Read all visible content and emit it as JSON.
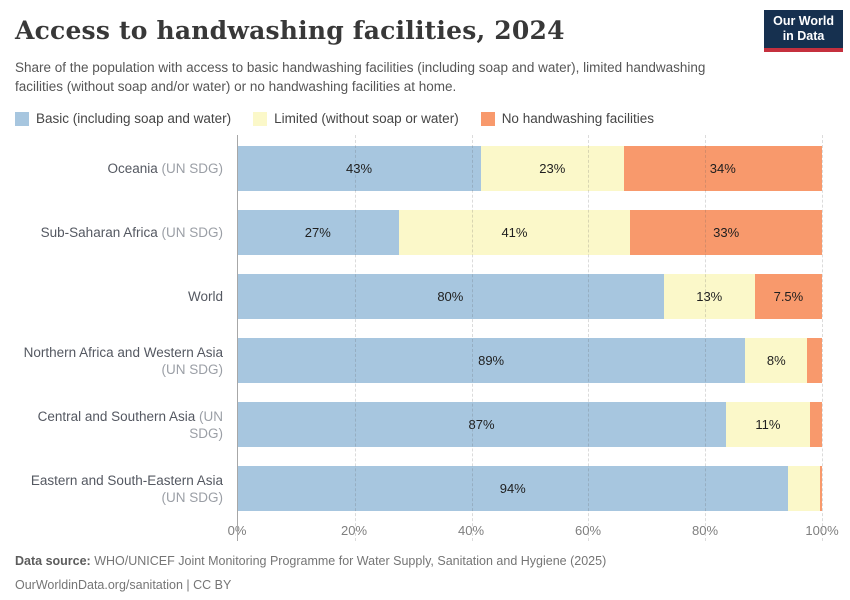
{
  "header": {
    "title": "Access to handwashing facilities, 2024",
    "subtitle": "Share of the population with access to basic handwashing facilities (including soap and water), limited handwashing facilities (without soap and/or water) or no handwashing facilities at home.",
    "logo": {
      "line1": "Our World",
      "line2": "in Data",
      "bg_color": "#16304f",
      "accent_color": "#c5303e"
    }
  },
  "chart_data": {
    "type": "bar",
    "stacked": true,
    "orientation": "horizontal",
    "unit": "%",
    "x_axis": {
      "range": [
        0,
        100
      ],
      "ticks": [
        0,
        20,
        40,
        60,
        80,
        100
      ],
      "tick_labels": [
        "0%",
        "20%",
        "40%",
        "60%",
        "80%",
        "100%"
      ],
      "gridlines": "dashed"
    },
    "legend_position": "top",
    "series": [
      {
        "name": "Basic (including soap and water)",
        "color": "#a7c6df"
      },
      {
        "name": "Limited (without soap or water)",
        "color": "#fbf8c9"
      },
      {
        "name": "No handwashing facilities",
        "color": "#f8996c"
      }
    ],
    "rows": [
      {
        "name": "Oceania",
        "qualifier": "(UN SDG)",
        "wrap": false,
        "values": [
          43,
          23,
          34
        ],
        "value_labels": [
          "43%",
          "23%",
          "34%"
        ]
      },
      {
        "name": "Sub-Saharan Africa",
        "qualifier": "(UN SDG)",
        "wrap": false,
        "values": [
          27,
          41,
          33
        ],
        "value_labels": [
          "27%",
          "41%",
          "33%"
        ]
      },
      {
        "name": "World",
        "qualifier": "",
        "wrap": false,
        "values": [
          80,
          13,
          7.5
        ],
        "value_labels": [
          "80%",
          "13%",
          "7.5%"
        ]
      },
      {
        "name": "Northern Africa and Western Asia",
        "qualifier": "(UN SDG)",
        "wrap": true,
        "values": [
          89,
          8,
          2.7
        ],
        "value_labels": [
          "89%",
          "8%",
          ""
        ]
      },
      {
        "name": "Central and Southern Asia",
        "qualifier": "(UN SDG)",
        "wrap": false,
        "values": [
          87,
          11,
          2.3
        ],
        "value_labels": [
          "87%",
          "11%",
          ""
        ]
      },
      {
        "name": "Eastern and South-Eastern Asia",
        "qualifier": "(UN SDG)",
        "wrap": true,
        "values": [
          94,
          5.6,
          0.4
        ],
        "value_labels": [
          "94%",
          "",
          ""
        ]
      }
    ]
  },
  "footer": {
    "source_label": "Data source:",
    "source_text": "WHO/UNICEF Joint Monitoring Programme for Water Supply, Sanitation and Hygiene (2025)",
    "note": "OurWorldinData.org/sanitation | CC BY"
  }
}
